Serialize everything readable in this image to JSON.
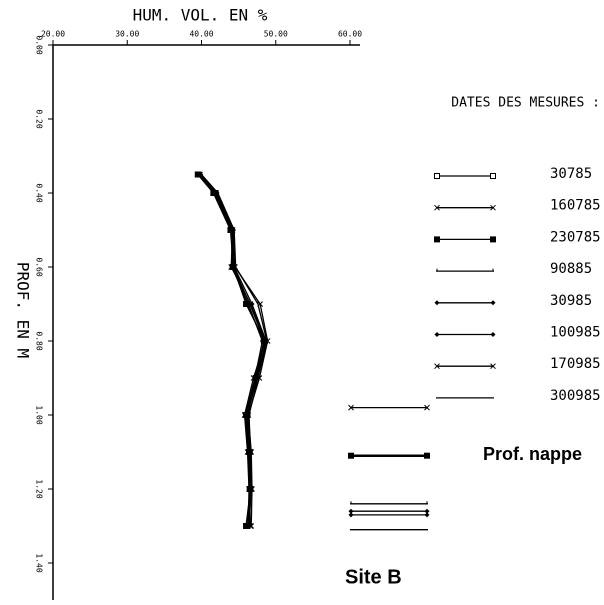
{
  "chart_data": {
    "type": "line",
    "x_label": "HUM. VOL. EN %",
    "y_label": "PROF. EN M",
    "legend_title": "DATES DES MESURES :",
    "water_table_label": "Prof. nappe",
    "site": "Site B",
    "xlim": [
      20,
      60
    ],
    "xticks": [
      {
        "value": 20,
        "label": "20.00"
      },
      {
        "value": 30,
        "label": "30.00"
      },
      {
        "value": 40,
        "label": "40.00"
      },
      {
        "value": 50,
        "label": "50.00"
      },
      {
        "value": 60,
        "label": "60.00"
      }
    ],
    "ylim": [
      0,
      1.4
    ],
    "yticks": [
      {
        "value": 0,
        "label": "0.00"
      },
      {
        "value": 0.2,
        "label": "0.20"
      },
      {
        "value": 0.4,
        "label": "0.40"
      },
      {
        "value": 0.6,
        "label": "0.60"
      },
      {
        "value": 0.8,
        "label": "0.80"
      },
      {
        "value": 1.0,
        "label": "1.00"
      },
      {
        "value": 1.2,
        "label": "1.20"
      },
      {
        "value": 1.4,
        "label": "1.40"
      }
    ],
    "y_inverted": true,
    "y": [
      0.35,
      0.4,
      0.5,
      0.6,
      0.7,
      0.8,
      0.9,
      1.0,
      1.1,
      1.2,
      1.3
    ],
    "series": [
      {
        "name": "30785",
        "color": "#000000",
        "marker": "square-open",
        "values": [
          39.6,
          41.8,
          44.0,
          44.2,
          46.1,
          48.4,
          47.3,
          46.0,
          46.4,
          46.5,
          46.2
        ],
        "water_table": null
      },
      {
        "name": "160785",
        "color": "#000000",
        "marker": "x",
        "values": [
          39.8,
          42.0,
          44.2,
          44.0,
          46.6,
          48.6,
          47.0,
          45.8,
          46.2,
          46.4,
          46.6
        ],
        "water_table": 0.98
      },
      {
        "name": "230785",
        "color": "#000000",
        "marker": "square",
        "values": [
          39.5,
          41.6,
          43.9,
          44.3,
          46.0,
          48.5,
          47.4,
          46.2,
          46.5,
          46.6,
          46.0
        ],
        "water_table": 1.11
      },
      {
        "name": "90885",
        "color": "#000000",
        "marker": "tick",
        "values": [
          40.0,
          42.2,
          44.4,
          44.6,
          47.6,
          48.8,
          47.6,
          46.4,
          46.6,
          46.7,
          46.4
        ],
        "water_table": 1.24
      },
      {
        "name": "30985",
        "color": "#000000",
        "marker": "diamond",
        "values": [
          39.7,
          41.9,
          44.1,
          44.1,
          46.3,
          48.2,
          47.2,
          45.9,
          46.3,
          46.4,
          46.3
        ],
        "water_table": 1.26
      },
      {
        "name": "100985",
        "color": "#000000",
        "marker": "diamond",
        "values": [
          39.9,
          42.1,
          44.3,
          44.4,
          46.8,
          48.7,
          47.5,
          46.1,
          46.5,
          46.5,
          46.5
        ],
        "water_table": 1.27
      },
      {
        "name": "170985",
        "color": "#000000",
        "marker": "x",
        "values": [
          39.6,
          41.7,
          44.0,
          44.5,
          47.9,
          48.9,
          47.8,
          46.3,
          46.7,
          46.8,
          46.7
        ],
        "water_table": null
      },
      {
        "name": "300985",
        "color": "#000000",
        "marker": "none",
        "values": [
          39.8,
          41.9,
          44.2,
          44.3,
          46.5,
          48.5,
          47.3,
          46.0,
          46.4,
          46.5,
          46.3
        ],
        "water_table": 1.31
      }
    ]
  }
}
